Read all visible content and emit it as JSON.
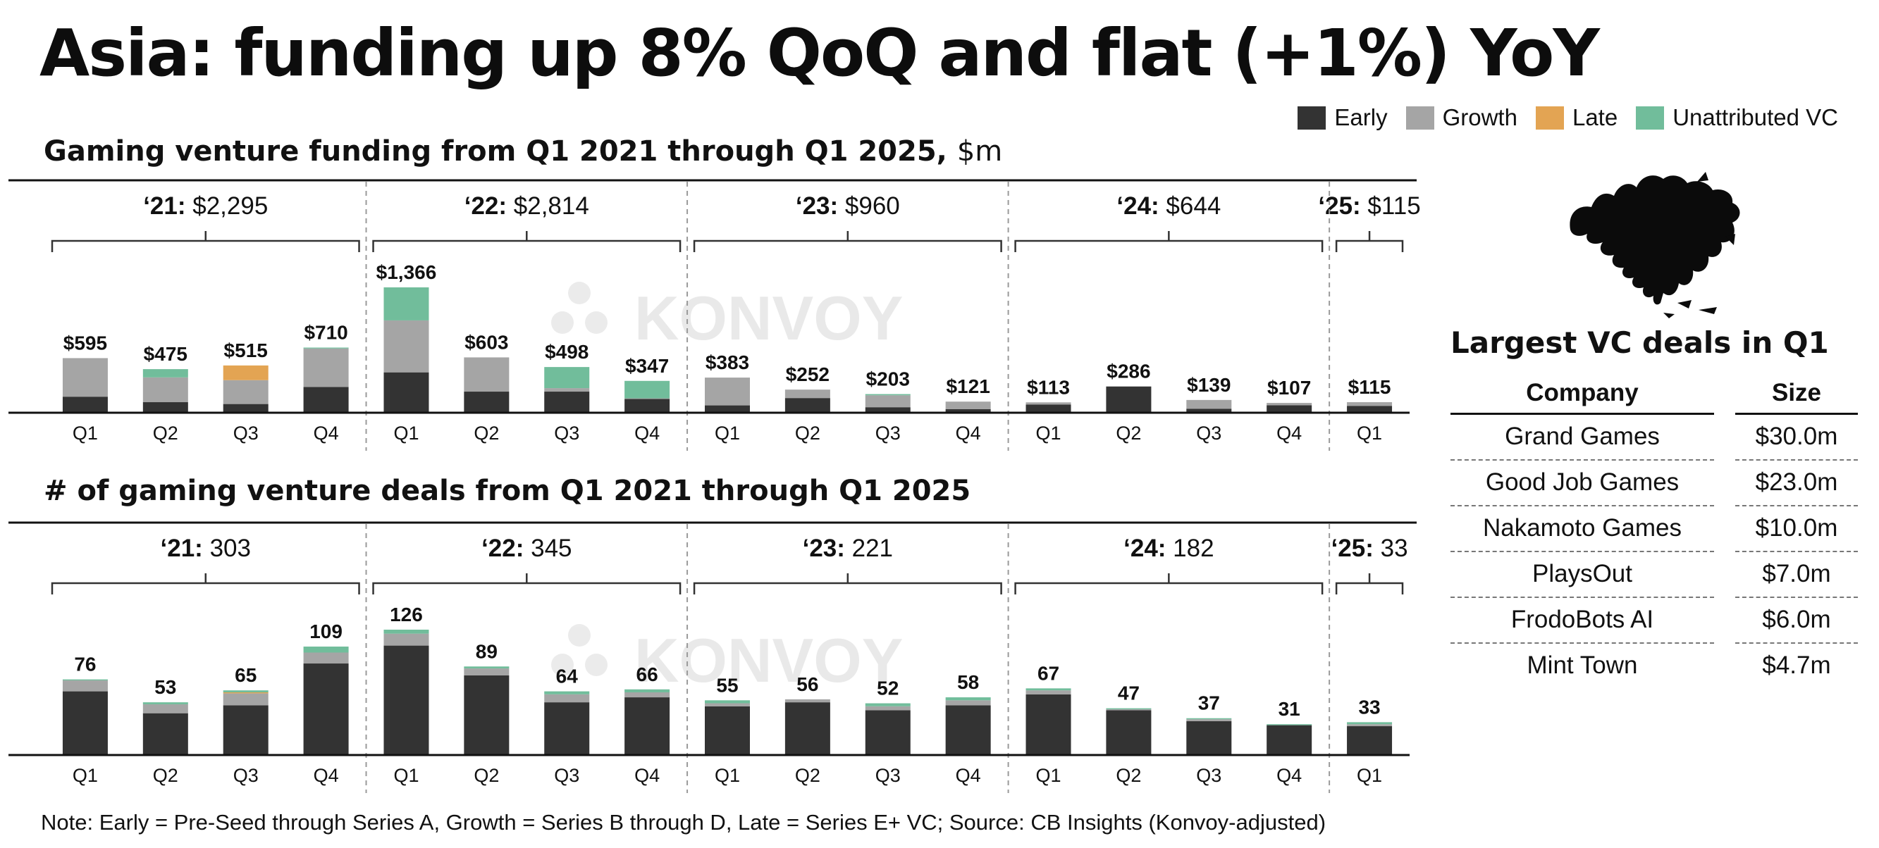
{
  "title": "Asia: funding up 8% QoQ and flat (+1%) YoY",
  "legend": [
    {
      "label": "Early",
      "color": "#333333"
    },
    {
      "label": "Growth",
      "color": "#a5a5a5"
    },
    {
      "label": "Late",
      "color": "#e3a453"
    },
    {
      "label": "Unattributed VC",
      "color": "#71bd9b"
    }
  ],
  "watermark": "KONVOY",
  "funding_chart": {
    "title": "Gaming venture funding from Q1 2021 through Q1 2025,",
    "unit": "$m"
  },
  "deals_chart": {
    "title": "# of gaming venture deals from Q1 2021 through Q1 2025"
  },
  "chart_data": [
    {
      "type": "bar",
      "stacked": true,
      "categories": [
        "Q1",
        "Q2",
        "Q3",
        "Q4",
        "Q1",
        "Q2",
        "Q3",
        "Q4",
        "Q1",
        "Q2",
        "Q3",
        "Q4",
        "Q1",
        "Q2",
        "Q3",
        "Q4",
        "Q1"
      ],
      "year_groups": [
        {
          "label": "‘21:",
          "total": "$2,295",
          "quarters": 4
        },
        {
          "label": "‘22:",
          "total": "$2,814",
          "quarters": 4
        },
        {
          "label": "‘23:",
          "total": "$960",
          "quarters": 4
        },
        {
          "label": "‘24:",
          "total": "$644",
          "quarters": 4
        },
        {
          "label": "‘25:",
          "total": "$115",
          "quarters": 1
        }
      ],
      "total_labels": [
        "$595",
        "$475",
        "$515",
        "$710",
        "$1,366",
        "$603",
        "$498",
        "$347",
        "$383",
        "$252",
        "$203",
        "$121",
        "$113",
        "$286",
        "$139",
        "$107",
        "$115"
      ],
      "series": [
        {
          "name": "Early",
          "values": [
            175,
            115,
            95,
            280,
            440,
            230,
            230,
            150,
            80,
            160,
            60,
            40,
            90,
            286,
            44,
            82,
            75
          ]
        },
        {
          "name": "Growth",
          "values": [
            420,
            270,
            260,
            420,
            566,
            373,
            38,
            7,
            303,
            92,
            130,
            81,
            23,
            0,
            95,
            25,
            40
          ]
        },
        {
          "name": "Late",
          "values": [
            0,
            0,
            160,
            0,
            0,
            0,
            0,
            0,
            0,
            0,
            0,
            0,
            0,
            0,
            0,
            0,
            0
          ]
        },
        {
          "name": "Unattributed VC",
          "values": [
            0,
            90,
            0,
            10,
            360,
            0,
            230,
            190,
            0,
            0,
            13,
            0,
            0,
            0,
            0,
            0,
            0
          ]
        }
      ],
      "ylim": [
        0,
        1366
      ]
    },
    {
      "type": "bar",
      "stacked": true,
      "categories": [
        "Q1",
        "Q2",
        "Q3",
        "Q4",
        "Q1",
        "Q2",
        "Q3",
        "Q4",
        "Q1",
        "Q2",
        "Q3",
        "Q4",
        "Q1",
        "Q2",
        "Q3",
        "Q4",
        "Q1"
      ],
      "year_groups": [
        {
          "label": "‘21:",
          "total": "303",
          "quarters": 4
        },
        {
          "label": "‘22:",
          "total": "345",
          "quarters": 4
        },
        {
          "label": "‘23:",
          "total": "221",
          "quarters": 4
        },
        {
          "label": "‘24:",
          "total": "182",
          "quarters": 4
        },
        {
          "label": "‘25:",
          "total": "33",
          "quarters": 1
        }
      ],
      "total_labels": [
        "76",
        "53",
        "65",
        "109",
        "126",
        "89",
        "64",
        "66",
        "55",
        "56",
        "52",
        "58",
        "67",
        "47",
        "37",
        "31",
        "33"
      ],
      "series": [
        {
          "name": "Early",
          "values": [
            64,
            42,
            50,
            92,
            110,
            80,
            53,
            58,
            49,
            53,
            45,
            50,
            61,
            45,
            34,
            30,
            29
          ]
        },
        {
          "name": "Growth",
          "values": [
            11,
            9,
            12,
            11,
            12,
            7,
            8,
            5,
            3,
            3,
            4,
            5,
            4,
            1,
            2,
            0,
            2
          ]
        },
        {
          "name": "Late",
          "values": [
            0,
            0,
            1,
            0,
            0,
            0,
            0,
            0,
            0,
            0,
            0,
            0,
            0,
            0,
            0,
            0,
            0
          ]
        },
        {
          "name": "Unattributed VC",
          "values": [
            1,
            2,
            2,
            6,
            4,
            2,
            3,
            3,
            3,
            0,
            3,
            3,
            2,
            1,
            1,
            1,
            2
          ]
        }
      ],
      "ylim": [
        0,
        126
      ]
    }
  ],
  "largest_deals": {
    "title": "Largest VC deals in Q1",
    "col_company": "Company",
    "col_size": "Size",
    "rows": [
      {
        "company": "Grand Games",
        "size": "$30.0m"
      },
      {
        "company": "Good Job Games",
        "size": "$23.0m"
      },
      {
        "company": "Nakamoto Games",
        "size": "$10.0m"
      },
      {
        "company": "PlaysOut",
        "size": "$7.0m"
      },
      {
        "company": "FrodoBots AI",
        "size": "$6.0m"
      },
      {
        "company": "Mint Town",
        "size": "$4.7m"
      }
    ]
  },
  "footnote": "Note: Early = Pre-Seed through Series A, Growth = Series B through D, Late = Series E+ VC; Source: CB Insights (Konvoy-adjusted)"
}
